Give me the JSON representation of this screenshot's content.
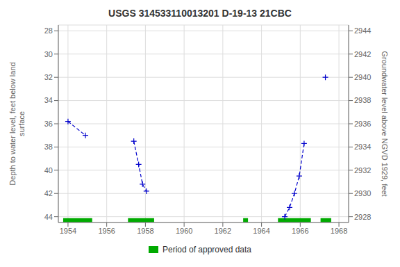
{
  "chart_data": {
    "type": "line",
    "title": "USGS 314533110013201 D-19-13 21CBC",
    "y_label": "Depth to water level, feet below land\nsurface",
    "y2_label": "Groundwater level above NGVD 1929, feet",
    "xlim": [
      1953.5,
      1968.5
    ],
    "xticks": [
      1954,
      1956,
      1958,
      1960,
      1962,
      1964,
      1966,
      1968
    ],
    "ylim": [
      44.5,
      27.5
    ],
    "yticks": [
      28,
      30,
      32,
      34,
      36,
      38,
      40,
      42,
      44
    ],
    "y2lim": [
      2927.5,
      2944.5
    ],
    "y2ticks": [
      2944,
      2942,
      2940,
      2938,
      2936,
      2934,
      2932,
      2930,
      2928
    ],
    "grid": true,
    "legend": "bottom",
    "series": [
      {
        "color": "#0000cc",
        "marker": "plus",
        "line_style": "dashed",
        "x": [
          1954.0,
          1954.9
        ],
        "values": [
          35.8,
          37.0
        ]
      },
      {
        "color": "#0000cc",
        "marker": "plus",
        "line_style": "dashed",
        "x": [
          1957.4,
          1957.65,
          1957.85,
          1958.05
        ],
        "values": [
          37.5,
          39.5,
          41.2,
          41.8
        ]
      },
      {
        "color": "#0000cc",
        "marker": "plus",
        "line_style": "dashed",
        "x": [
          1965.2,
          1965.45,
          1965.7,
          1965.95,
          1966.2
        ],
        "values": [
          44.0,
          43.2,
          42.0,
          40.5,
          37.7
        ]
      },
      {
        "color": "#0000cc",
        "marker": "plus",
        "line_style": "dashed",
        "x": [
          1967.3
        ],
        "values": [
          32.0
        ]
      }
    ],
    "spans": {
      "name": "Period of approved data",
      "color": "#00aa00",
      "ranges": [
        [
          1953.75,
          1955.25
        ],
        [
          1957.1,
          1958.45
        ],
        [
          1963.05,
          1963.3
        ],
        [
          1964.85,
          1966.55
        ],
        [
          1967.05,
          1967.6
        ]
      ],
      "y": 44.3,
      "height": 0.35
    }
  }
}
